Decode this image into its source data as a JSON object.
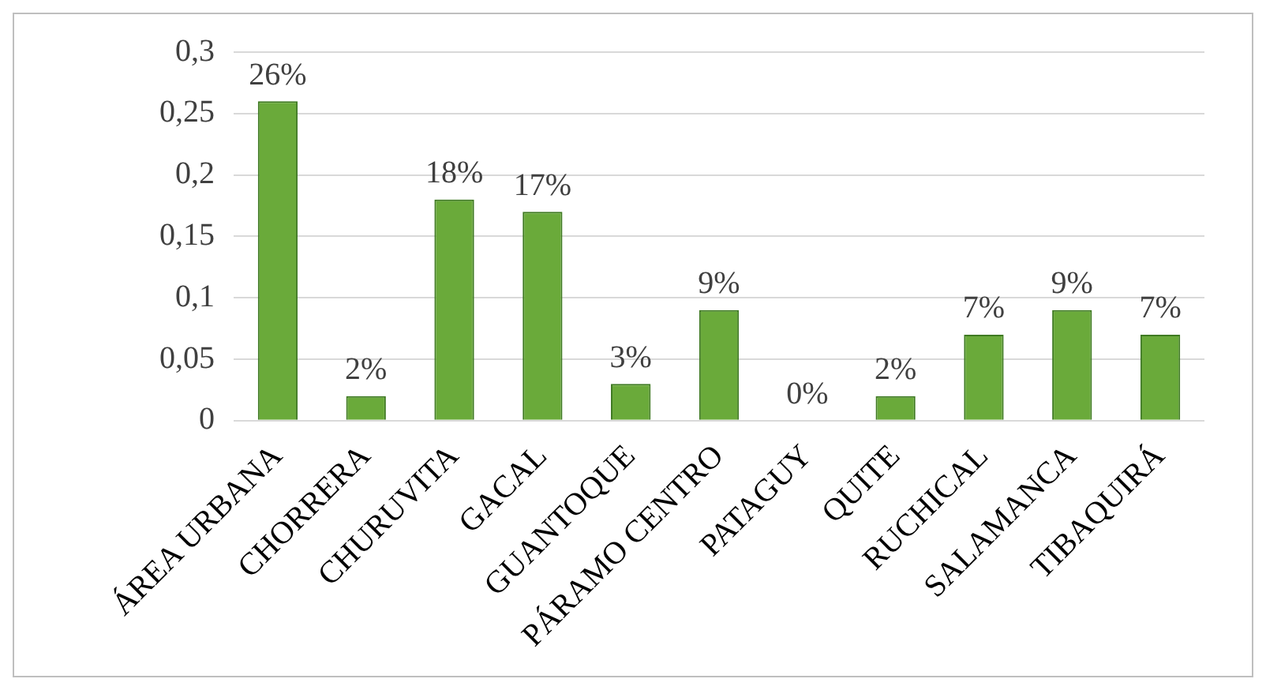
{
  "chart_data": {
    "type": "bar",
    "categories": [
      "ÁREA URBANA",
      "CHORRERA",
      "CHURUVITA",
      "GACAL",
      "GUANTOQUE",
      "PÁRAMO CENTRO",
      "PATAGUY",
      "QUITE",
      "RUCHICAL",
      "SALAMANCA",
      "TIBAQUIRÁ"
    ],
    "values": [
      0.26,
      0.02,
      0.18,
      0.17,
      0.03,
      0.09,
      0,
      0.02,
      0.07,
      0.09,
      0.07
    ],
    "value_labels": [
      "26%",
      "2%",
      "18%",
      "17%",
      "3%",
      "9%",
      "0%",
      "2%",
      "7%",
      "9%",
      "7%"
    ],
    "color": "#6aaa3a",
    "ylim": [
      0,
      0.3
    ],
    "yticks": [
      {
        "value": 0,
        "label": "0"
      },
      {
        "value": 0.05,
        "label": "0,05"
      },
      {
        "value": 0.1,
        "label": "0,1"
      },
      {
        "value": 0.15,
        "label": "0,15"
      },
      {
        "value": 0.2,
        "label": "0,2"
      },
      {
        "value": 0.25,
        "label": "0,25"
      },
      {
        "value": 0.3,
        "label": "0,3"
      }
    ],
    "grid": "y",
    "legend": false
  }
}
